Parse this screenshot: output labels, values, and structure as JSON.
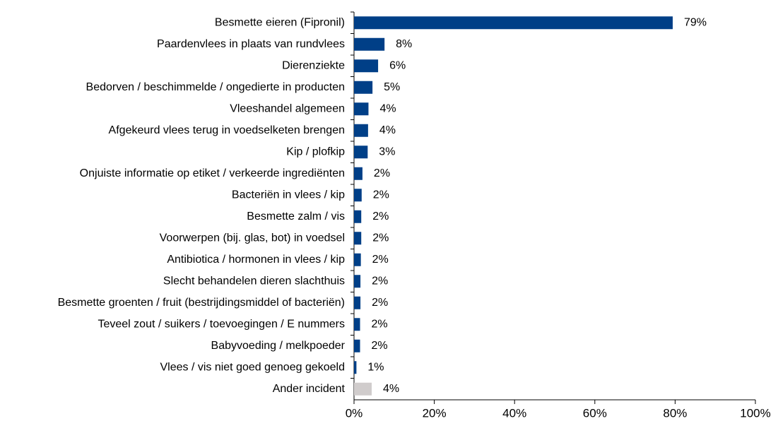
{
  "chart_data": {
    "type": "hbar",
    "categories": [
      "Besmette eieren (Fipronil)",
      "Paardenvlees in plaats van rundvlees",
      "Dierenziekte",
      "Bedorven / beschimmelde / ongedierte in producten",
      "Vleeshandel algemeen",
      "Afgekeurd vlees terug in voedselketen brengen",
      "Kip / plofkip",
      "Onjuiste informatie op etiket / verkeerde ingrediënten",
      "Bacteriën in vlees / kip",
      "Besmette zalm / vis",
      "Voorwerpen (bij. glas, bot) in voedsel",
      "Antibiotica / hormonen in vlees / kip",
      "Slecht behandelen dieren slachthuis",
      "Besmette groenten / fruit (bestrijdingsmiddel of bacteriën)",
      "Teveel zout / suikers / toevoegingen / E nummers",
      "Babyvoeding / melkpoeder",
      "Vlees / vis niet goed genoeg gekoeld",
      "Ander incident"
    ],
    "values": [
      79.4,
      7.6,
      6.0,
      4.6,
      3.6,
      3.5,
      3.4,
      2.1,
      1.9,
      1.8,
      1.8,
      1.7,
      1.6,
      1.6,
      1.5,
      1.5,
      0.6,
      4.4
    ],
    "value_labels": [
      "79%",
      "8%",
      "6%",
      "5%",
      "4%",
      "4%",
      "3%",
      "2%",
      "2%",
      "2%",
      "2%",
      "2%",
      "2%",
      "2%",
      "2%",
      "2%",
      "1%",
      "4%"
    ],
    "colors": [
      "#003f87",
      "#003f87",
      "#003f87",
      "#003f87",
      "#003f87",
      "#003f87",
      "#003f87",
      "#003f87",
      "#003f87",
      "#003f87",
      "#003f87",
      "#003f87",
      "#003f87",
      "#003f87",
      "#003f87",
      "#003f87",
      "#003f87",
      "#d0cccc"
    ],
    "xlim": [
      0,
      100
    ],
    "xticks": [
      {
        "value": 0,
        "label": "0%"
      },
      {
        "value": 20,
        "label": "20%"
      },
      {
        "value": 40,
        "label": "40%"
      },
      {
        "value": 60,
        "label": "60%"
      },
      {
        "value": 80,
        "label": "80%"
      },
      {
        "value": 100,
        "label": "100%"
      }
    ]
  }
}
